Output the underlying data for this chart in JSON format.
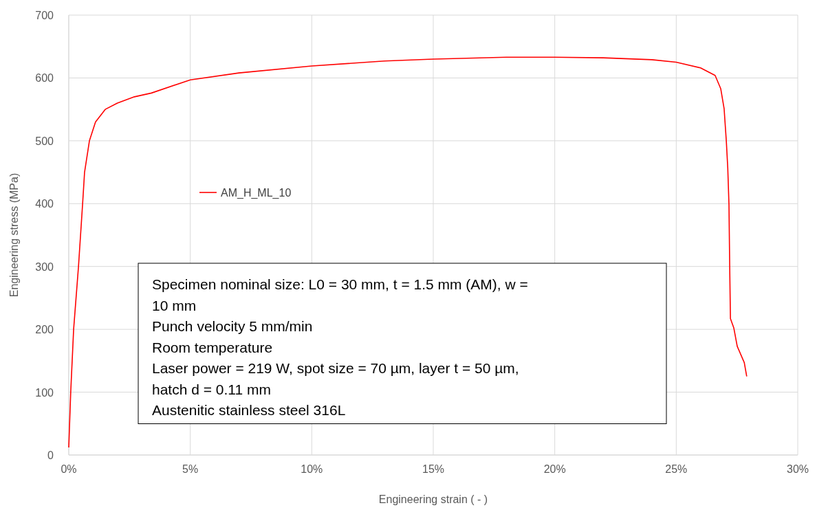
{
  "chart_data": {
    "type": "line",
    "xlabel": "Engineering strain ( - )",
    "ylabel": "Engineering stress (MPa)",
    "xlim": [
      0,
      0.3
    ],
    "xticks": [
      {
        "value": 0,
        "label": "0%"
      },
      {
        "value": 0.05,
        "label": "5%"
      },
      {
        "value": 0.1,
        "label": "10%"
      },
      {
        "value": 0.15,
        "label": "15%"
      },
      {
        "value": 0.2,
        "label": "20%"
      },
      {
        "value": 0.25,
        "label": "25%"
      },
      {
        "value": 0.3,
        "label": "30%"
      }
    ],
    "ylim": [
      0,
      700
    ],
    "yticks": [
      0,
      100,
      200,
      300,
      400,
      500,
      600,
      700
    ],
    "grid": true,
    "legend": "left",
    "marker": "none",
    "line_style": "solid",
    "series": [
      {
        "name": "AM_H_ML_10",
        "color": "#ff0000",
        "x": [
          0,
          0.0008,
          0.002,
          0.004,
          0.0057,
          0.0065,
          0.0085,
          0.011,
          0.015,
          0.02,
          0.027,
          0.034,
          0.05,
          0.07,
          0.1,
          0.13,
          0.15,
          0.18,
          0.2,
          0.22,
          0.24,
          0.25,
          0.26,
          0.266,
          0.2683,
          0.2697,
          0.2706,
          0.2712,
          0.2717,
          0.272,
          0.2723,
          0.2737,
          0.2751,
          0.278,
          0.279
        ],
        "values": [
          12,
          100,
          200,
          300,
          400,
          450,
          500,
          530,
          550,
          560,
          570,
          576,
          597,
          608,
          619,
          627,
          630,
          633,
          633,
          632,
          629,
          625,
          616,
          604,
          583,
          551,
          500,
          457,
          398,
          300,
          217,
          202,
          173,
          147,
          125
        ]
      }
    ],
    "annotations": [
      "Specimen nominal size: L0 = 30 mm, t = 1.5 mm (AM), w = 10 mm",
      "Punch velocity 5 mm/min",
      "Room temperature",
      "Laser power = 219 W, spot size = 70 µm, layer t = 50 µm, hatch d = 0.11 mm",
      "Austenitic stainless steel 316L"
    ]
  }
}
